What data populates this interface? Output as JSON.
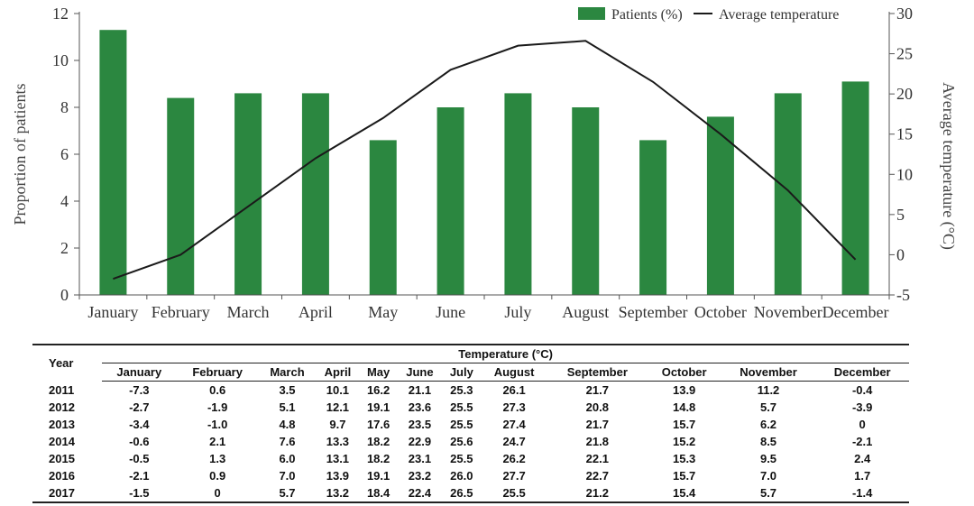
{
  "chart_data": {
    "type": "bar",
    "categories": [
      "January",
      "February",
      "March",
      "April",
      "May",
      "June",
      "July",
      "August",
      "September",
      "October",
      "November",
      "December"
    ],
    "series": [
      {
        "name": "Patients (%)",
        "type": "bar",
        "axis": "left",
        "color": "#2b8740",
        "values": [
          11.3,
          8.4,
          8.6,
          8.6,
          6.6,
          8.0,
          8.6,
          8.0,
          6.6,
          7.6,
          8.6,
          9.1
        ]
      },
      {
        "name": "Average temperature",
        "type": "line",
        "axis": "right",
        "color": "#1a1a1a",
        "values": [
          -3.0,
          0.0,
          6.0,
          12.0,
          17.0,
          23.0,
          26.0,
          26.6,
          21.5,
          15.0,
          8.0,
          -0.6
        ]
      }
    ],
    "ylabel": "Proportion of patients",
    "y2label": "Average temperature (°C)",
    "ylim": [
      0,
      12
    ],
    "y2lim": [
      -5,
      30
    ],
    "yticks": [
      0,
      2,
      4,
      6,
      8,
      10,
      12
    ],
    "y2ticks": [
      -5,
      0,
      5,
      10,
      15,
      20,
      25,
      30
    ],
    "legend": "top-right",
    "grid": false
  },
  "table": {
    "year_header": "Year",
    "group_header": "Temperature (°C)",
    "months": [
      "January",
      "February",
      "March",
      "April",
      "May",
      "June",
      "July",
      "August",
      "September",
      "October",
      "November",
      "December"
    ],
    "rows": [
      {
        "year": "2011",
        "values": [
          "-7.3",
          "0.6",
          "3.5",
          "10.1",
          "16.2",
          "21.1",
          "25.3",
          "26.1",
          "21.7",
          "13.9",
          "11.2",
          "-0.4"
        ]
      },
      {
        "year": "2012",
        "values": [
          "-2.7",
          "-1.9",
          "5.1",
          "12.1",
          "19.1",
          "23.6",
          "25.5",
          "27.3",
          "20.8",
          "14.8",
          "5.7",
          "-3.9"
        ]
      },
      {
        "year": "2013",
        "values": [
          "-3.4",
          "-1.0",
          "4.8",
          "9.7",
          "17.6",
          "23.5",
          "25.5",
          "27.4",
          "21.7",
          "15.7",
          "6.2",
          "0"
        ]
      },
      {
        "year": "2014",
        "values": [
          "-0.6",
          "2.1",
          "7.6",
          "13.3",
          "18.2",
          "22.9",
          "25.6",
          "24.7",
          "21.8",
          "15.2",
          "8.5",
          "-2.1"
        ]
      },
      {
        "year": "2015",
        "values": [
          "-0.5",
          "1.3",
          "6.0",
          "13.1",
          "18.2",
          "23.1",
          "25.5",
          "26.2",
          "22.1",
          "15.3",
          "9.5",
          "2.4"
        ]
      },
      {
        "year": "2016",
        "values": [
          "-2.1",
          "0.9",
          "7.0",
          "13.9",
          "19.1",
          "23.2",
          "26.0",
          "27.7",
          "22.7",
          "15.7",
          "7.0",
          "1.7"
        ]
      },
      {
        "year": "2017",
        "values": [
          "-1.5",
          "0",
          "5.7",
          "13.2",
          "18.4",
          "22.4",
          "26.5",
          "25.5",
          "21.2",
          "15.4",
          "5.7",
          "-1.4"
        ]
      }
    ]
  }
}
